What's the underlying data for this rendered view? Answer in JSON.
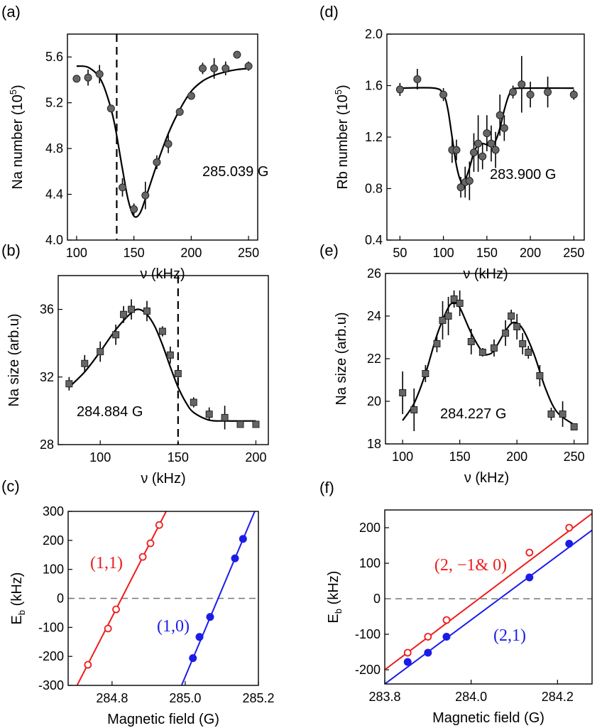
{
  "chart_data": [
    {
      "id": "a",
      "panel_label": "(a)",
      "type": "scatter",
      "xlabel": "ν (kHz)",
      "ylabel": "Na number (10^5)",
      "xlim": [
        92,
        258
      ],
      "ylim": [
        4.0,
        5.8
      ],
      "xticks": [
        100,
        150,
        200,
        250
      ],
      "xtick_labels": [
        "100",
        "150",
        "200",
        "250"
      ],
      "yticks": [
        4.0,
        4.4,
        4.8,
        5.2,
        5.6
      ],
      "ytick_labels": [
        "4.0",
        "4.4",
        "4.8",
        "5.2",
        "5.6"
      ],
      "annotation": "285.039 G",
      "vline_x": 135,
      "marker": "circle",
      "marker_color": "#666666",
      "points": [
        {
          "x": 100,
          "y": 5.41,
          "err": 0.03
        },
        {
          "x": 110,
          "y": 5.42,
          "err": 0.07
        },
        {
          "x": 120,
          "y": 5.45,
          "err": 0.08
        },
        {
          "x": 130,
          "y": 5.15,
          "err": 0.03
        },
        {
          "x": 140,
          "y": 4.46,
          "err": 0.08
        },
        {
          "x": 150,
          "y": 4.27,
          "err": 0.05
        },
        {
          "x": 160,
          "y": 4.39,
          "err": 0.12
        },
        {
          "x": 170,
          "y": 4.68,
          "err": 0.06
        },
        {
          "x": 180,
          "y": 4.84,
          "err": 0.08
        },
        {
          "x": 190,
          "y": 5.12,
          "err": 0.03
        },
        {
          "x": 200,
          "y": 5.26,
          "err": 0.03
        },
        {
          "x": 210,
          "y": 5.5,
          "err": 0.05
        },
        {
          "x": 220,
          "y": 5.5,
          "err": 0.09
        },
        {
          "x": 230,
          "y": 5.5,
          "err": 0.06
        },
        {
          "x": 240,
          "y": 5.62,
          "err": 0.03
        },
        {
          "x": 250,
          "y": 5.52,
          "err": 0.04
        }
      ],
      "fit": [
        [
          100,
          5.52
        ],
        [
          110,
          5.51
        ],
        [
          120,
          5.42
        ],
        [
          127,
          5.25
        ],
        [
          133,
          5.02
        ],
        [
          140,
          4.62
        ],
        [
          145,
          4.35
        ],
        [
          150,
          4.21
        ],
        [
          155,
          4.23
        ],
        [
          160,
          4.36
        ],
        [
          170,
          4.66
        ],
        [
          180,
          4.93
        ],
        [
          190,
          5.14
        ],
        [
          200,
          5.3
        ],
        [
          210,
          5.39
        ],
        [
          220,
          5.44
        ],
        [
          230,
          5.47
        ],
        [
          240,
          5.49
        ],
        [
          250,
          5.5
        ]
      ]
    },
    {
      "id": "d",
      "panel_label": "(d)",
      "type": "scatter",
      "xlabel": "ν (kHz)",
      "ylabel": "Rb number (10^5)",
      "xlim": [
        35,
        262
      ],
      "ylim": [
        0.4,
        2.0
      ],
      "xticks": [
        50,
        100,
        150,
        200,
        250
      ],
      "xtick_labels": [
        "50",
        "100",
        "150",
        "200",
        "250"
      ],
      "yticks": [
        0.4,
        0.8,
        1.2,
        1.6,
        2.0
      ],
      "ytick_labels": [
        "0.4",
        "0.8",
        "1.2",
        "1.6",
        "2.0"
      ],
      "annotation": "283.900 G",
      "vline_x": null,
      "marker": "circle",
      "marker_color": "#666666",
      "points": [
        {
          "x": 50,
          "y": 1.57,
          "err": 0.05
        },
        {
          "x": 70,
          "y": 1.65,
          "err": 0.08
        },
        {
          "x": 100,
          "y": 1.53,
          "err": 0.05
        },
        {
          "x": 110,
          "y": 1.1,
          "err": 0.1
        },
        {
          "x": 115,
          "y": 1.1,
          "err": 0.08
        },
        {
          "x": 120,
          "y": 0.81,
          "err": 0.08
        },
        {
          "x": 125,
          "y": 0.85,
          "err": 0.12
        },
        {
          "x": 130,
          "y": 0.86,
          "err": 0.15
        },
        {
          "x": 135,
          "y": 1.08,
          "err": 0.15
        },
        {
          "x": 140,
          "y": 1.15,
          "err": 0.22
        },
        {
          "x": 145,
          "y": 1.05,
          "err": 0.1
        },
        {
          "x": 150,
          "y": 1.23,
          "err": 0.14
        },
        {
          "x": 155,
          "y": 1.15,
          "err": 0.14
        },
        {
          "x": 160,
          "y": 1.1,
          "err": 0.14
        },
        {
          "x": 165,
          "y": 1.37,
          "err": 0.16
        },
        {
          "x": 170,
          "y": 1.27,
          "err": 0.1
        },
        {
          "x": 180,
          "y": 1.55,
          "err": 0.05
        },
        {
          "x": 190,
          "y": 1.61,
          "err": 0.22
        },
        {
          "x": 200,
          "y": 1.53,
          "err": 0.1
        },
        {
          "x": 220,
          "y": 1.55,
          "err": 0.12
        },
        {
          "x": 250,
          "y": 1.53,
          "err": 0.04
        }
      ],
      "fit": [
        [
          50,
          1.58
        ],
        [
          90,
          1.58
        ],
        [
          100,
          1.53
        ],
        [
          105,
          1.42
        ],
        [
          110,
          1.2
        ],
        [
          115,
          0.98
        ],
        [
          120,
          0.86
        ],
        [
          125,
          0.87
        ],
        [
          130,
          0.96
        ],
        [
          135,
          1.08
        ],
        [
          140,
          1.14
        ],
        [
          145,
          1.15
        ],
        [
          150,
          1.14
        ],
        [
          155,
          1.13
        ],
        [
          160,
          1.17
        ],
        [
          165,
          1.27
        ],
        [
          170,
          1.41
        ],
        [
          175,
          1.52
        ],
        [
          180,
          1.57
        ],
        [
          190,
          1.58
        ],
        [
          250,
          1.58
        ]
      ]
    },
    {
      "id": "b",
      "panel_label": "(b)",
      "type": "scatter",
      "xlabel": "ν (kHz)",
      "ylabel": "Na size (arb.u)",
      "xlim": [
        73,
        208
      ],
      "ylim": [
        28,
        38
      ],
      "xticks": [
        100,
        150,
        200
      ],
      "xtick_labels": [
        "100",
        "150",
        "200"
      ],
      "yticks": [
        28,
        32,
        36
      ],
      "ytick_labels": [
        "28",
        "32",
        "36"
      ],
      "annotation": "284.884 G",
      "vline_x": 150,
      "marker": "square",
      "marker_color": "#666666",
      "points": [
        {
          "x": 80,
          "y": 31.6,
          "err": 0.4
        },
        {
          "x": 90,
          "y": 32.8,
          "err": 0.5
        },
        {
          "x": 100,
          "y": 33.5,
          "err": 0.6
        },
        {
          "x": 110,
          "y": 34.5,
          "err": 0.6
        },
        {
          "x": 115,
          "y": 35.7,
          "err": 0.5
        },
        {
          "x": 120,
          "y": 36.0,
          "err": 0.6
        },
        {
          "x": 130,
          "y": 35.9,
          "err": 0.6
        },
        {
          "x": 140,
          "y": 34.7,
          "err": 0.3
        },
        {
          "x": 145,
          "y": 33.3,
          "err": 0.5
        },
        {
          "x": 150,
          "y": 32.2,
          "err": 0.3
        },
        {
          "x": 160,
          "y": 30.5,
          "err": 0.3
        },
        {
          "x": 170,
          "y": 29.8,
          "err": 0.4
        },
        {
          "x": 180,
          "y": 29.6,
          "err": 0.7
        },
        {
          "x": 190,
          "y": 29.2,
          "err": 0.1
        },
        {
          "x": 200,
          "y": 29.2,
          "err": 0.1
        }
      ],
      "fit": [
        [
          80,
          31.4
        ],
        [
          90,
          32.3
        ],
        [
          100,
          33.5
        ],
        [
          110,
          34.8
        ],
        [
          120,
          35.8
        ],
        [
          125,
          36.0
        ],
        [
          130,
          35.7
        ],
        [
          135,
          35.0
        ],
        [
          140,
          33.9
        ],
        [
          145,
          32.6
        ],
        [
          150,
          31.4
        ],
        [
          155,
          30.5
        ],
        [
          160,
          29.9
        ],
        [
          170,
          29.45
        ],
        [
          180,
          29.4
        ],
        [
          200,
          29.4
        ]
      ]
    },
    {
      "id": "e",
      "panel_label": "(e)",
      "type": "scatter",
      "xlabel": "ν (kHz)",
      "ylabel": "Na size (arb.u)",
      "xlim": [
        85,
        262
      ],
      "ylim": [
        18,
        26
      ],
      "xticks": [
        100,
        150,
        200,
        250
      ],
      "xtick_labels": [
        "100",
        "150",
        "200",
        "250"
      ],
      "yticks": [
        18,
        20,
        22,
        24,
        26
      ],
      "ytick_labels": [
        "18",
        "20",
        "22",
        "24",
        "26"
      ],
      "annotation": "284.227 G",
      "vline_x": null,
      "marker": "square",
      "marker_color": "#666666",
      "points": [
        {
          "x": 100,
          "y": 20.4,
          "err": 1.0
        },
        {
          "x": 110,
          "y": 19.6,
          "err": 1.0
        },
        {
          "x": 120,
          "y": 21.3,
          "err": 0.4
        },
        {
          "x": 130,
          "y": 22.7,
          "err": 0.4
        },
        {
          "x": 135,
          "y": 23.8,
          "err": 0.9
        },
        {
          "x": 140,
          "y": 24.0,
          "err": 0.9
        },
        {
          "x": 145,
          "y": 24.8,
          "err": 0.4
        },
        {
          "x": 150,
          "y": 24.6,
          "err": 0.6
        },
        {
          "x": 160,
          "y": 22.8,
          "err": 0.6
        },
        {
          "x": 170,
          "y": 22.3,
          "err": 0.2
        },
        {
          "x": 180,
          "y": 22.5,
          "err": 0.4
        },
        {
          "x": 190,
          "y": 23.2,
          "err": 0.6
        },
        {
          "x": 195,
          "y": 24.0,
          "err": 0.3
        },
        {
          "x": 200,
          "y": 23.5,
          "err": 0.6
        },
        {
          "x": 205,
          "y": 22.7,
          "err": 0.5
        },
        {
          "x": 210,
          "y": 22.3,
          "err": 0.3
        },
        {
          "x": 220,
          "y": 21.2,
          "err": 0.5
        },
        {
          "x": 230,
          "y": 19.4,
          "err": 0.3
        },
        {
          "x": 240,
          "y": 19.4,
          "err": 0.6
        },
        {
          "x": 250,
          "y": 18.8,
          "err": 0.1
        }
      ],
      "fit": [
        [
          100,
          19.1
        ],
        [
          110,
          19.9
        ],
        [
          120,
          21.3
        ],
        [
          130,
          23.1
        ],
        [
          140,
          24.4
        ],
        [
          145,
          24.6
        ],
        [
          150,
          24.4
        ],
        [
          160,
          23.2
        ],
        [
          170,
          22.3
        ],
        [
          175,
          22.2
        ],
        [
          180,
          22.4
        ],
        [
          190,
          23.3
        ],
        [
          197,
          23.7
        ],
        [
          205,
          23.4
        ],
        [
          215,
          22.2
        ],
        [
          225,
          20.6
        ],
        [
          235,
          19.5
        ],
        [
          250,
          18.9
        ]
      ]
    },
    {
      "id": "c",
      "panel_label": "(c)",
      "type": "scatter",
      "xlabel": "Magnetic field (G)",
      "ylabel": "E_b (kHz)",
      "xlim": [
        284.68,
        285.2
      ],
      "ylim": [
        -300,
        300
      ],
      "xticks": [
        284.8,
        285.0,
        285.2
      ],
      "xtick_labels": [
        "284.8",
        "285.0",
        "285.2"
      ],
      "yticks": [
        -300,
        -200,
        -100,
        0,
        100,
        200,
        300
      ],
      "ytick_labels": [
        "-300",
        "-200",
        "-100",
        "0",
        "100",
        "200",
        "300"
      ],
      "zero_line": true,
      "series": [
        {
          "name": "(1,1)",
          "color": "#ee1c1c",
          "marker": "open-circle",
          "points": [
            [
              284.734,
              -229
            ],
            [
              284.789,
              -104
            ],
            [
              284.811,
              -38
            ],
            [
              284.884,
              143
            ],
            [
              284.905,
              190
            ],
            [
              284.929,
              253
            ]
          ],
          "line": [
            [
              284.68,
              -360
            ],
            [
              284.96,
              330
            ]
          ]
        },
        {
          "name": "(1,0)",
          "color": "#1c1ce8",
          "marker": "filled-circle",
          "points": [
            [
              285.021,
              -206
            ],
            [
              285.039,
              -133
            ],
            [
              285.068,
              -64
            ],
            [
              285.136,
              138
            ],
            [
              285.158,
              205
            ]
          ],
          "line": [
            [
              284.97,
              -360
            ],
            [
              285.21,
              360
            ]
          ]
        }
      ]
    },
    {
      "id": "f",
      "panel_label": "(f)",
      "type": "scatter",
      "xlabel": "Magnetic field (G)",
      "ylabel": "E_b (kHz)",
      "xlim": [
        283.8,
        284.28
      ],
      "ylim": [
        -240,
        250
      ],
      "xticks": [
        283.8,
        284.0,
        284.2
      ],
      "xtick_labels": [
        "283.8",
        "284.0",
        "284.2"
      ],
      "yticks": [
        -200,
        -100,
        0,
        100,
        200
      ],
      "ytick_labels": [
        "-200",
        "-100",
        "0",
        "100",
        "200"
      ],
      "zero_line": true,
      "series": [
        {
          "name": "(2, −1& 0)",
          "color": "#ee1c1c",
          "marker": "open-circle",
          "points": [
            [
              283.853,
              -152
            ],
            [
              283.9,
              -107
            ],
            [
              283.943,
              -60
            ],
            [
              284.135,
              130
            ],
            [
              284.227,
              200
            ]
          ],
          "line": [
            [
              283.8,
              -200
            ],
            [
              284.28,
              240
            ]
          ]
        },
        {
          "name": "(2,1)",
          "color": "#1c1ce8",
          "marker": "filled-circle",
          "points": [
            [
              283.853,
              -178
            ],
            [
              283.9,
              -152
            ],
            [
              283.943,
              -107
            ],
            [
              284.135,
              60
            ],
            [
              284.227,
              155
            ]
          ],
          "line": [
            [
              283.8,
              -240
            ],
            [
              284.28,
              193
            ]
          ]
        }
      ]
    }
  ]
}
